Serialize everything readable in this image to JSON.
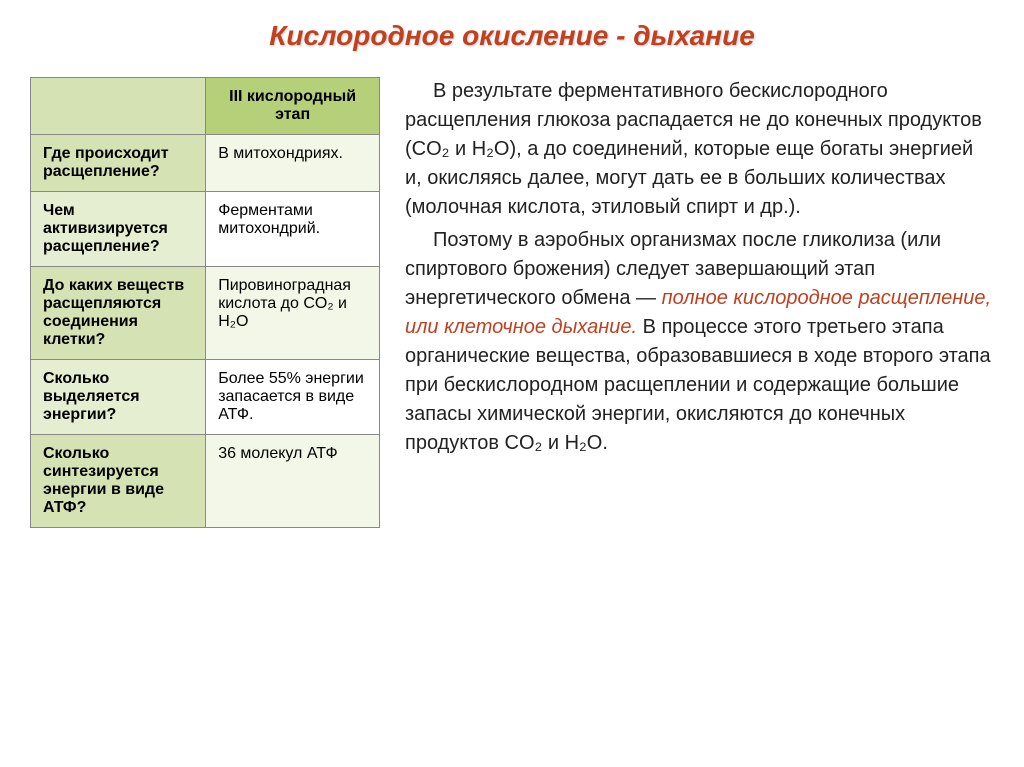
{
  "title": "Кислородное окисление - дыхание",
  "table": {
    "header_col2": "III кислородный этап",
    "rows": [
      {
        "q": "Где происходит расщепление?",
        "a": "В митохондриях."
      },
      {
        "q": "Чем активизируется расщепление?",
        "a": "Ферментами митохондрий."
      },
      {
        "q": "До каких веществ расщепляются соединения клетки?",
        "a": "Пировиноградная кислота до CO₂ и H₂O"
      },
      {
        "q": "Сколько выделяется энергии?",
        "a": "Более 55% энергии запасается в виде АТФ."
      },
      {
        "q": "Сколько синтезируется энергии в виде АТФ?",
        "a": "36 молекул АТФ"
      }
    ]
  },
  "paragraphs": {
    "p1": "В результате ферментативного бескислородного расщепления глюкоза распадается не до конечных продуктов (CO₂ и H₂O), а до соединений, которые еще богаты энергией и, окисляясь далее, могут дать ее в больших количествах (молочная кислота, этиловый спирт и др.).",
    "p2_a": "Поэтому в аэробных организмах после гликолиза (или спиртового брожения) следует завершающий этап энергетического обмена — ",
    "p2_em": "полное кислородное расщепление, или клеточное дыхание.",
    "p2_b": " В процессе этого третьего этапа органические вещества, образовавшиеся в ходе второго этапа при бескислородном расщеплении и содержащие большие запасы химической энергии, окисляются до конечных продуктов CO₂ и H₂O."
  }
}
